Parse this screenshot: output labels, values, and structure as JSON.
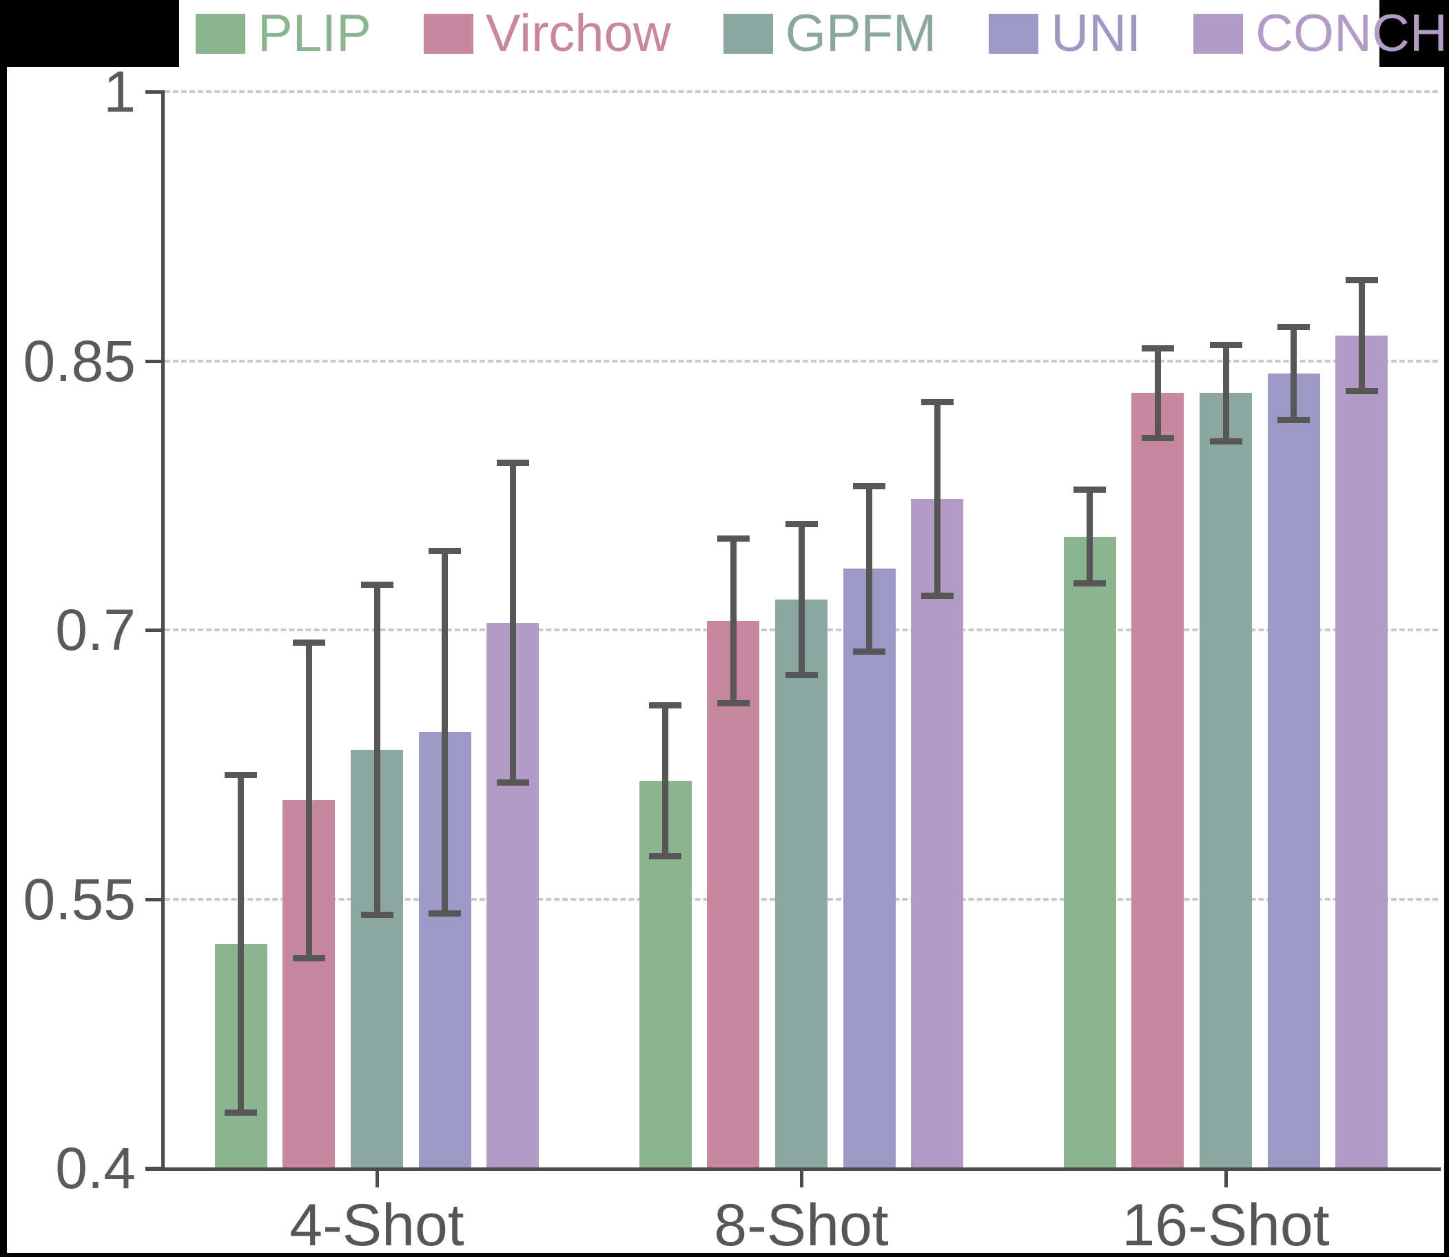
{
  "chart_data": {
    "type": "bar",
    "title": "",
    "xlabel": "",
    "ylabel": "",
    "categories": [
      "4-Shot",
      "8-Shot",
      "16-Shot"
    ],
    "series": [
      {
        "name": "PLIP",
        "color": "#8db491",
        "values": [
          0.525,
          0.616,
          0.752
        ],
        "errors": [
          0.094,
          0.042,
          0.026
        ]
      },
      {
        "name": "Virchow",
        "color": "#c6879f",
        "values": [
          0.605,
          0.705,
          0.832
        ],
        "errors": [
          0.088,
          0.046,
          0.025
        ]
      },
      {
        "name": "GPFM",
        "color": "#8ba7a0",
        "values": [
          0.633,
          0.717,
          0.832
        ],
        "errors": [
          0.092,
          0.042,
          0.027
        ]
      },
      {
        "name": "UNI",
        "color": "#9c9ac4",
        "values": [
          0.643,
          0.734,
          0.843
        ],
        "errors": [
          0.101,
          0.046,
          0.026
        ]
      },
      {
        "name": "CONCH",
        "color": "#b29bc4",
        "values": [
          0.704,
          0.773,
          0.864
        ],
        "errors": [
          0.089,
          0.054,
          0.031
        ]
      }
    ],
    "ylim": [
      0.4,
      1.0
    ],
    "yticks": [
      0.4,
      0.55,
      0.7,
      0.85,
      1.0
    ],
    "ytick_labels": [
      "0.4",
      "0.55",
      "0.7",
      "0.85",
      "1"
    ],
    "grid": "horizontal-dashed",
    "grid_values": [
      0.55,
      0.7,
      0.85,
      1.0
    ],
    "legend_position": "top",
    "error_bars": true
  },
  "style": {
    "background": "#000000",
    "panel": "#ffffff",
    "grid_color": "#c9c9c9",
    "spine_color": "#4c4c4c",
    "error_color": "#575757",
    "ytick_color": "#5a5a5a",
    "xtick_color": "#565656"
  }
}
